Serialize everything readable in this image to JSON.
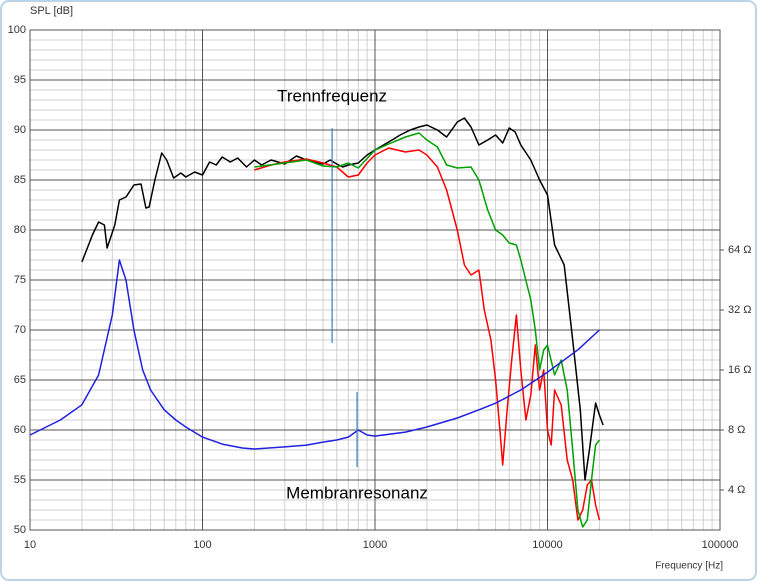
{
  "chart_data": {
    "type": "line",
    "ylabel": "SPL [dB]",
    "xlabel": "Frequency [Hz]",
    "xscale": "log",
    "y2scale": "log",
    "grid": true,
    "xlim": [
      10,
      100000
    ],
    "xticks": [
      10,
      100,
      1000,
      10000,
      100000
    ],
    "xminorticks": [
      20,
      30,
      40,
      50,
      60,
      70,
      80,
      90,
      200,
      300,
      400,
      500,
      600,
      700,
      800,
      900,
      2000,
      3000,
      4000,
      5000,
      6000,
      7000,
      8000,
      9000,
      20000,
      30000,
      40000,
      50000,
      60000,
      70000,
      80000,
      90000
    ],
    "ylim": [
      50,
      100
    ],
    "yticks": [
      50,
      55,
      60,
      65,
      70,
      75,
      80,
      85,
      90,
      95,
      100
    ],
    "yminorticks": [
      51,
      52,
      53,
      54,
      56,
      57,
      58,
      59,
      61,
      62,
      63,
      64,
      66,
      67,
      68,
      69,
      71,
      72,
      73,
      74,
      76,
      77,
      78,
      79,
      81,
      82,
      83,
      84,
      86,
      87,
      88,
      89,
      91,
      92,
      93,
      94,
      96,
      97,
      98,
      99
    ],
    "y2lim": [
      2.52,
      812.7
    ],
    "y2ticks": [
      {
        "value": 4,
        "label": "4 Ω"
      },
      {
        "value": 8,
        "label": "8 Ω"
      },
      {
        "value": 16,
        "label": "16 Ω"
      },
      {
        "value": 32,
        "label": "32 Ω"
      },
      {
        "value": 64,
        "label": "64 Ω"
      }
    ],
    "series": [
      {
        "color": "#000000",
        "x": [
          20,
          23,
          25,
          27,
          28,
          31,
          33,
          36,
          40,
          44,
          47,
          49,
          53,
          58,
          62,
          68,
          75,
          80,
          90,
          100,
          110,
          120,
          130,
          145,
          160,
          180,
          200,
          220,
          250,
          300,
          350,
          400,
          450,
          500,
          550,
          600,
          650,
          700,
          800,
          900,
          1000,
          1200,
          1400,
          1600,
          1800,
          2000,
          2300,
          2600,
          3000,
          3300,
          3600,
          4000,
          4500,
          5000,
          5500,
          6000,
          6500,
          7000,
          8000,
          9000,
          10000,
          11000,
          12500,
          14000,
          15500,
          16500,
          17500,
          19000,
          20000,
          21000
        ],
        "values": [
          76.8,
          79.5,
          80.8,
          80.5,
          78.2,
          80.5,
          83,
          83.3,
          84.5,
          84.6,
          82.2,
          82.3,
          85,
          87.7,
          87,
          85.2,
          85.7,
          85.3,
          85.8,
          85.5,
          86.8,
          86.5,
          87.3,
          86.8,
          87.2,
          86.3,
          87,
          86.5,
          87,
          86.6,
          87.4,
          87,
          86.8,
          86.6,
          87,
          86.6,
          86.3,
          86.5,
          86.7,
          87.5,
          88,
          88.8,
          89.5,
          90,
          90.3,
          90.5,
          90,
          89.3,
          90.8,
          91.2,
          90.3,
          88.5,
          89,
          89.5,
          88.7,
          90.2,
          89.8,
          88.5,
          87,
          85,
          83.5,
          78.5,
          76.5,
          69,
          62,
          55,
          58,
          62.7,
          61.5,
          60.5
        ]
      },
      {
        "color": "#ff0000",
        "x": [
          200,
          250,
          300,
          400,
          500,
          600,
          700,
          800,
          900,
          1000,
          1200,
          1500,
          1800,
          2000,
          2300,
          2600,
          3000,
          3300,
          3600,
          4000,
          4300,
          4700,
          5000,
          5300,
          5500,
          5800,
          6200,
          6600,
          7000,
          7500,
          8000,
          8500,
          9000,
          9500,
          10000,
          10500,
          11000,
          12000,
          13000,
          14000,
          15000,
          16000,
          17000,
          18000,
          19000,
          20000
        ],
        "values": [
          86,
          86.5,
          86.8,
          87.1,
          86.7,
          86.3,
          85.3,
          85.5,
          86.7,
          87.5,
          88.2,
          87.8,
          88,
          87.5,
          86.3,
          84,
          80,
          76.5,
          75.5,
          76,
          72,
          69,
          65,
          60,
          56.5,
          61.5,
          67,
          71.5,
          66,
          61,
          63.5,
          68.5,
          64,
          66,
          60,
          58.5,
          64,
          62.5,
          57,
          55,
          51,
          52,
          54.5,
          55,
          52.5,
          51
        ]
      },
      {
        "color": "#00a000",
        "x": [
          200,
          300,
          400,
          500,
          600,
          700,
          800,
          1000,
          1200,
          1500,
          1800,
          2000,
          2300,
          2600,
          3000,
          3600,
          4000,
          4500,
          5000,
          5500,
          6000,
          6600,
          7000,
          8000,
          8500,
          9000,
          9500,
          10000,
          11000,
          12000,
          13000,
          14000,
          15000,
          16000,
          17000,
          18000,
          19000,
          20000
        ],
        "values": [
          86.3,
          86.7,
          87,
          86.4,
          86.3,
          86.7,
          86.2,
          88,
          88.6,
          89.3,
          89.7,
          89,
          88.3,
          86.5,
          86.2,
          86.3,
          85,
          82,
          80,
          79.5,
          78.7,
          78.5,
          77,
          73,
          70,
          66,
          68,
          68.5,
          65.5,
          67,
          64,
          58,
          52,
          50.3,
          51,
          55,
          58.5,
          59
        ]
      },
      {
        "color": "#2020e0",
        "axis": "y2",
        "x": [
          10,
          15,
          20,
          25,
          30,
          33,
          36,
          40,
          45,
          50,
          60,
          70,
          80,
          100,
          130,
          170,
          200,
          300,
          400,
          500,
          600,
          700,
          800,
          900,
          1000,
          1500,
          2000,
          3000,
          4000,
          5000,
          7000,
          10000,
          15000,
          20000
        ],
        "values": [
          7.55,
          8.98,
          10.7,
          15.1,
          30.2,
          57.0,
          45.2,
          25.4,
          16.0,
          12.7,
          10.1,
          8.98,
          8.28,
          7.37,
          6.8,
          6.5,
          6.42,
          6.58,
          6.72,
          6.96,
          7.13,
          7.37,
          8.0,
          7.55,
          7.46,
          7.81,
          8.28,
          9.19,
          10.1,
          10.9,
          12.7,
          15.6,
          20.2,
          25.4
        ]
      }
    ],
    "annotations": [
      {
        "text": "Trennfrequenz",
        "x": 564
      },
      {
        "text": "Membranresonanz",
        "x": 787
      }
    ]
  }
}
